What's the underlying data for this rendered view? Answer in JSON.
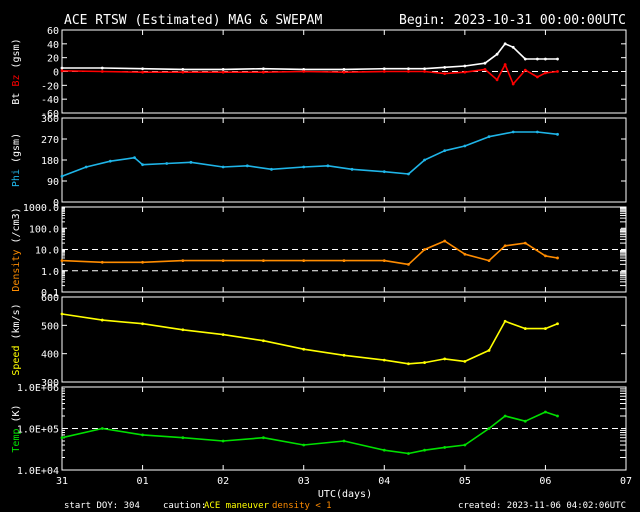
{
  "title_left": "ACE RTSW (Estimated) MAG & SWEPAM",
  "title_right": "Begin: 2023-10-31 00:00:00UTC",
  "footer": {
    "start_doy": "start DOY: 304",
    "caution_label": "caution:",
    "caution_item1": "ACE maneuver",
    "caution_item2": "density < 1",
    "created": "created: 2023-11-06 04:02:06UTC"
  },
  "colors": {
    "background": "#000000",
    "axes": "#ffffff",
    "bt": "#ffffff",
    "bz": "#ff0000",
    "phi": "#1fb5e8",
    "density": "#ff8c00",
    "speed": "#ffff00",
    "temp": "#00e000",
    "caution_item1": "#ffff00",
    "caution_item2": "#ff8c00"
  },
  "chart_data": {
    "type": "scatter",
    "x_label": "UTC(days)",
    "x_ticks": [
      "31",
      "01",
      "02",
      "03",
      "04",
      "05",
      "06",
      "07"
    ],
    "x_range_days": [
      0,
      7
    ],
    "panels": [
      {
        "id": "mag",
        "ylabel_parts": [
          {
            "text": "Bt",
            "color": "#ffffff"
          },
          {
            "text": "Bz",
            "color": "#ff0000"
          },
          {
            "text": "(gsm)",
            "color": "#ffffff"
          }
        ],
        "ylim": [
          -60,
          60
        ],
        "yticks": [
          "60",
          "40",
          "20",
          "0",
          "-20",
          "-40",
          "-60"
        ],
        "ref_lines": [
          0
        ],
        "series": [
          {
            "name": "Bt",
            "color": "#ffffff",
            "points": [
              [
                0.0,
                5
              ],
              [
                0.5,
                5
              ],
              [
                1.0,
                4
              ],
              [
                1.5,
                3
              ],
              [
                2.0,
                3
              ],
              [
                2.5,
                4
              ],
              [
                3.0,
                3
              ],
              [
                3.5,
                3
              ],
              [
                4.0,
                4
              ],
              [
                4.3,
                4
              ],
              [
                4.5,
                4
              ],
              [
                4.75,
                6
              ],
              [
                5.0,
                8
              ],
              [
                5.25,
                12
              ],
              [
                5.4,
                25
              ],
              [
                5.5,
                40
              ],
              [
                5.6,
                35
              ],
              [
                5.75,
                18
              ],
              [
                5.9,
                18
              ],
              [
                6.0,
                18
              ],
              [
                6.15,
                18
              ]
            ]
          },
          {
            "name": "Bz",
            "color": "#ff0000",
            "points": [
              [
                0.0,
                1
              ],
              [
                0.5,
                0
              ],
              [
                1.0,
                -1
              ],
              [
                1.5,
                -1
              ],
              [
                2.0,
                -1
              ],
              [
                2.5,
                -1
              ],
              [
                3.0,
                0
              ],
              [
                3.5,
                -1
              ],
              [
                4.0,
                0
              ],
              [
                4.3,
                0
              ],
              [
                4.5,
                0
              ],
              [
                4.75,
                -3
              ],
              [
                5.0,
                -1
              ],
              [
                5.25,
                3
              ],
              [
                5.4,
                -12
              ],
              [
                5.5,
                10
              ],
              [
                5.6,
                -18
              ],
              [
                5.75,
                2
              ],
              [
                5.9,
                -8
              ],
              [
                6.0,
                -2
              ],
              [
                6.15,
                0
              ]
            ]
          }
        ]
      },
      {
        "id": "phi",
        "ylabel_parts": [
          {
            "text": "Phi",
            "color": "#1fb5e8"
          },
          {
            "text": "(gsm)",
            "color": "#ffffff"
          }
        ],
        "ylim": [
          0,
          360
        ],
        "yticks": [
          "360",
          "270",
          "180",
          "90",
          "0"
        ],
        "ref_lines": [],
        "series": [
          {
            "name": "Phi",
            "color": "#1fb5e8",
            "points": [
              [
                0.0,
                110
              ],
              [
                0.3,
                150
              ],
              [
                0.6,
                175
              ],
              [
                0.9,
                190
              ],
              [
                1.0,
                160
              ],
              [
                1.3,
                165
              ],
              [
                1.6,
                170
              ],
              [
                2.0,
                150
              ],
              [
                2.3,
                155
              ],
              [
                2.6,
                140
              ],
              [
                3.0,
                150
              ],
              [
                3.3,
                155
              ],
              [
                3.6,
                140
              ],
              [
                4.0,
                130
              ],
              [
                4.3,
                120
              ],
              [
                4.5,
                180
              ],
              [
                4.75,
                220
              ],
              [
                5.0,
                240
              ],
              [
                5.3,
                280
              ],
              [
                5.6,
                300
              ],
              [
                5.9,
                300
              ],
              [
                6.15,
                290
              ]
            ]
          }
        ]
      },
      {
        "id": "density",
        "ylabel_parts": [
          {
            "text": "Density",
            "color": "#ff8c00"
          },
          {
            "text": "(/cm3)",
            "color": "#ffffff"
          }
        ],
        "log": true,
        "ylim": [
          0.1,
          1000
        ],
        "yticks": [
          "1000.0",
          "100.0",
          "10.0",
          "1.0",
          "0.1"
        ],
        "ref_lines": [
          10,
          1
        ],
        "series": [
          {
            "name": "Density",
            "color": "#ff8c00",
            "points": [
              [
                0.0,
                3
              ],
              [
                0.5,
                2.5
              ],
              [
                1.0,
                2.5
              ],
              [
                1.5,
                3
              ],
              [
                2.0,
                3
              ],
              [
                2.5,
                3
              ],
              [
                3.0,
                3
              ],
              [
                3.5,
                3
              ],
              [
                4.0,
                3
              ],
              [
                4.3,
                2
              ],
              [
                4.5,
                10
              ],
              [
                4.75,
                25
              ],
              [
                5.0,
                6
              ],
              [
                5.3,
                3
              ],
              [
                5.5,
                15
              ],
              [
                5.75,
                20
              ],
              [
                6.0,
                5
              ],
              [
                6.15,
                4
              ]
            ]
          }
        ]
      },
      {
        "id": "speed",
        "ylabel_parts": [
          {
            "text": "Speed",
            "color": "#ffff00"
          },
          {
            "text": "(km/s)",
            "color": "#ffffff"
          }
        ],
        "ylim": [
          250,
          600
        ],
        "yticks": [
          "600",
          "500",
          "400",
          "300"
        ],
        "ref_lines": [],
        "series": [
          {
            "name": "Speed",
            "color": "#ffff00",
            "points": [
              [
                0.0,
                530
              ],
              [
                0.5,
                505
              ],
              [
                1.0,
                490
              ],
              [
                1.5,
                465
              ],
              [
                2.0,
                445
              ],
              [
                2.5,
                420
              ],
              [
                3.0,
                385
              ],
              [
                3.5,
                360
              ],
              [
                4.0,
                340
              ],
              [
                4.3,
                325
              ],
              [
                4.5,
                330
              ],
              [
                4.75,
                345
              ],
              [
                5.0,
                335
              ],
              [
                5.3,
                380
              ],
              [
                5.5,
                500
              ],
              [
                5.75,
                470
              ],
              [
                6.0,
                470
              ],
              [
                6.15,
                490
              ]
            ]
          }
        ]
      },
      {
        "id": "temp",
        "ylabel_parts": [
          {
            "text": "Temp",
            "color": "#00e000"
          },
          {
            "text": "(K)",
            "color": "#ffffff"
          }
        ],
        "log": true,
        "ylim": [
          10000,
          1000000
        ],
        "yticks": [
          "1.0E+06",
          "1.0E+05",
          "1.0E+04"
        ],
        "ref_lines": [
          100000
        ],
        "series": [
          {
            "name": "Temp",
            "color": "#00e000",
            "points": [
              [
                0.0,
                60000
              ],
              [
                0.5,
                100000
              ],
              [
                1.0,
                70000
              ],
              [
                1.5,
                60000
              ],
              [
                2.0,
                50000
              ],
              [
                2.5,
                60000
              ],
              [
                3.0,
                40000
              ],
              [
                3.5,
                50000
              ],
              [
                4.0,
                30000
              ],
              [
                4.3,
                25000
              ],
              [
                4.5,
                30000
              ],
              [
                4.75,
                35000
              ],
              [
                5.0,
                40000
              ],
              [
                5.3,
                100000
              ],
              [
                5.5,
                200000
              ],
              [
                5.75,
                150000
              ],
              [
                6.0,
                250000
              ],
              [
                6.15,
                200000
              ]
            ]
          }
        ]
      }
    ]
  }
}
